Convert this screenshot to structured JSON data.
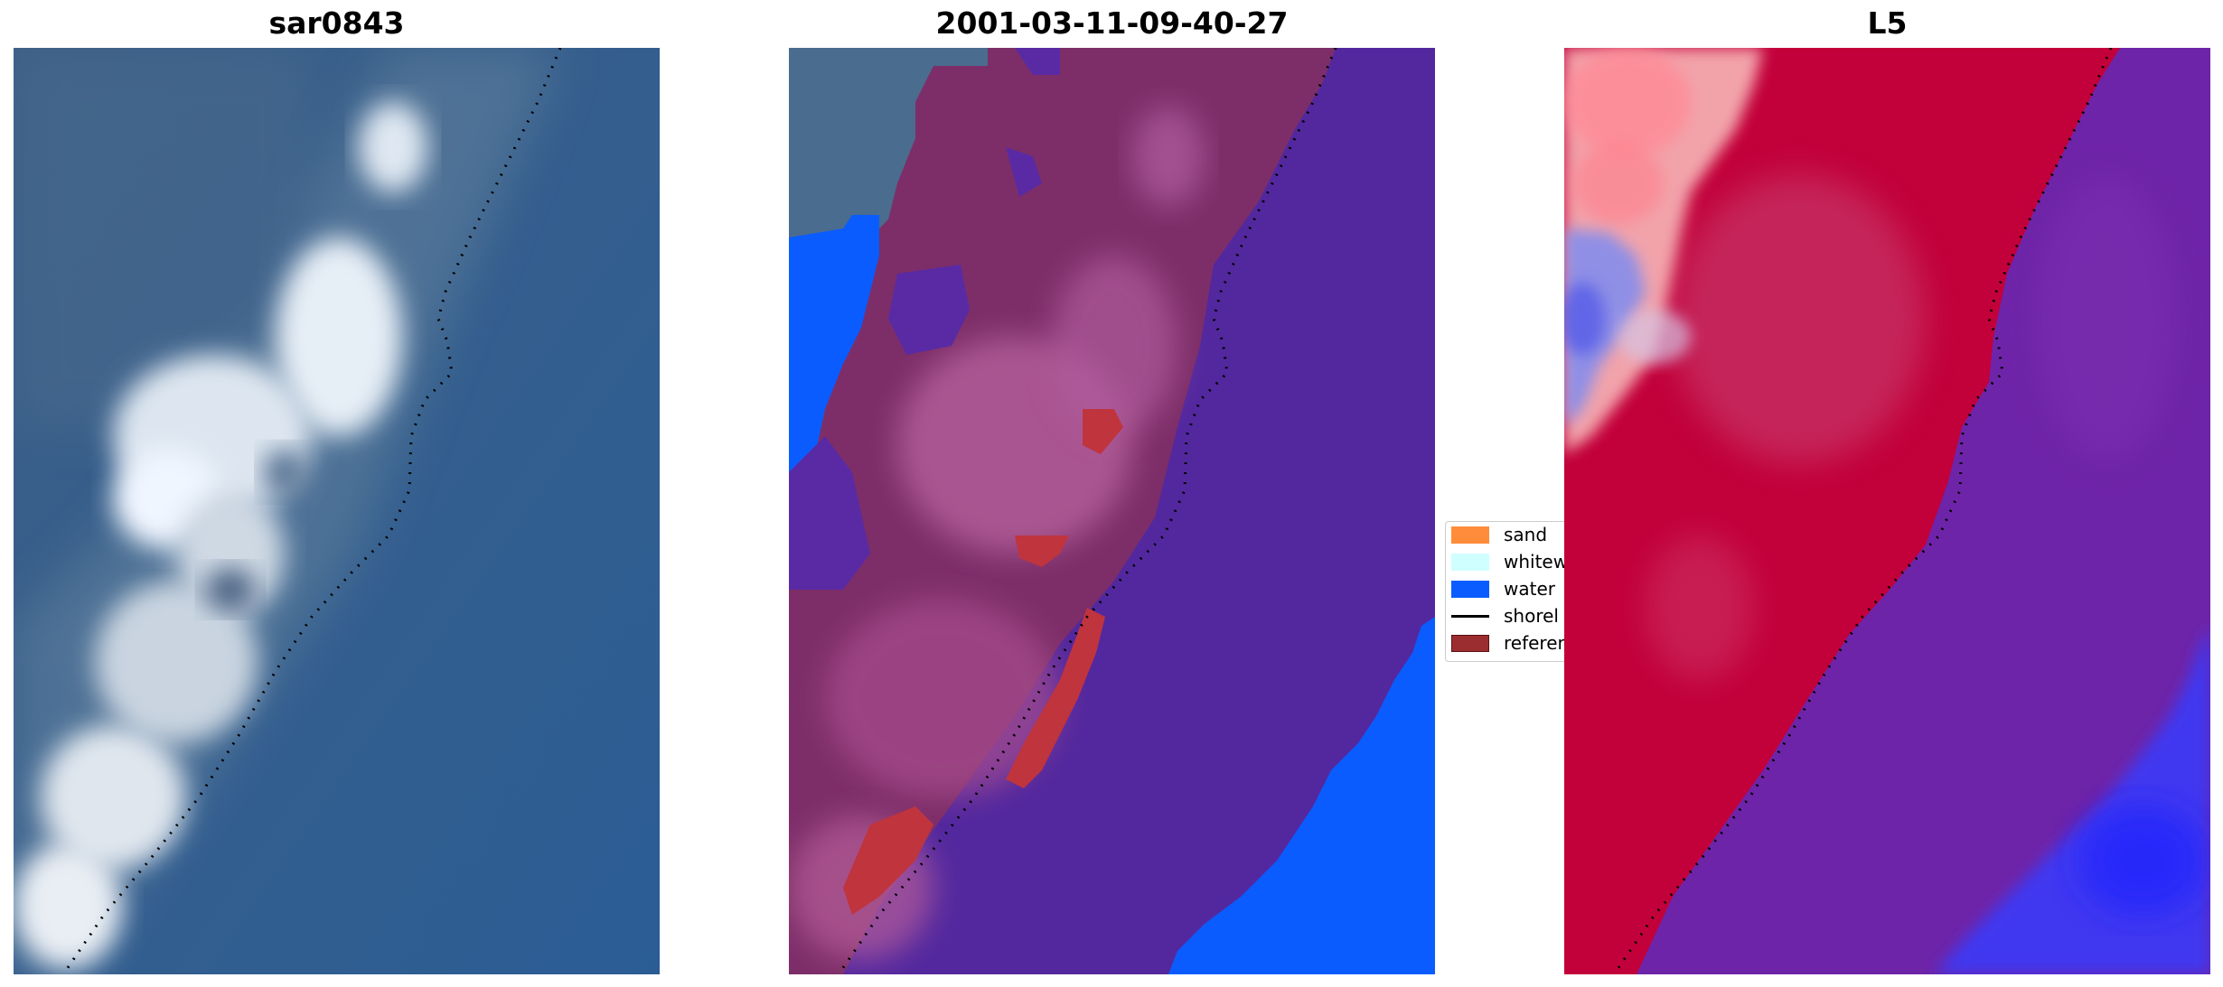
{
  "panels": {
    "left": {
      "title": "sar0843"
    },
    "middle": {
      "title": "2001-03-11-09-40-27"
    },
    "right": {
      "title": "L5"
    }
  },
  "legend": {
    "items": [
      {
        "label": "sand",
        "color": "#ff8c3a",
        "kind": "patch"
      },
      {
        "label": "whitew",
        "color": "#cfffff",
        "kind": "patch"
      },
      {
        "label": "water",
        "color": "#0a5cff",
        "kind": "patch"
      },
      {
        "label": "shorel",
        "color": "#000000",
        "kind": "line"
      },
      {
        "label": "referen",
        "color": "#9b2d30",
        "kind": "patch"
      }
    ]
  },
  "colors": {
    "ocean_rgb": "#2f5b8f",
    "land_white": "#e8eef5",
    "class_land": "#8a3f7a",
    "class_water_overlay": "#5528a0",
    "class_water": "#0a5cff",
    "class_reference": "#c0343e",
    "index_red": "#c8002a",
    "index_purple": "#6d22a8",
    "index_blue": "#2b3cff",
    "shoreline": "#000000"
  }
}
